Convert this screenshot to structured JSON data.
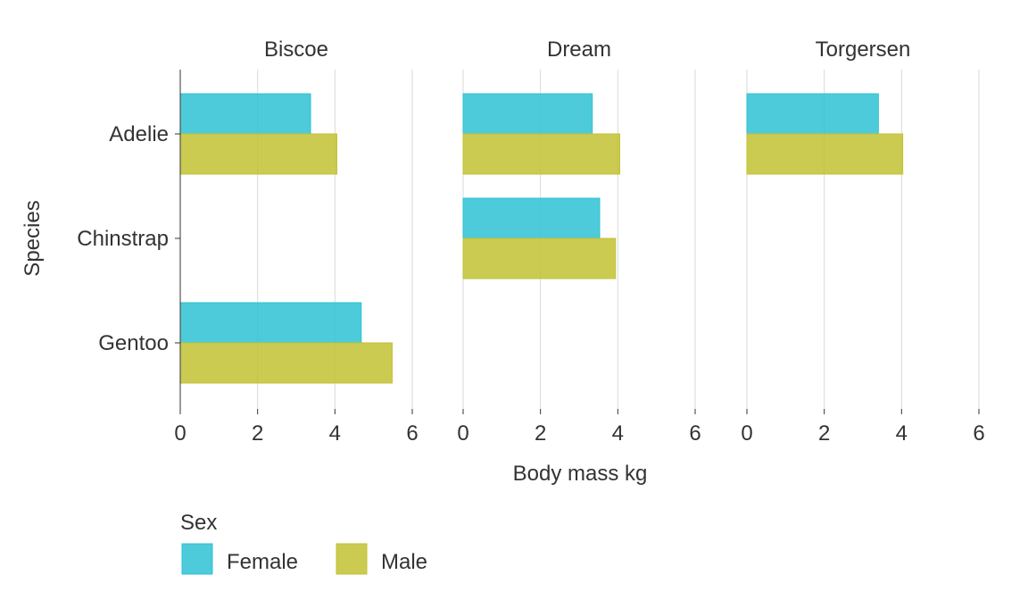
{
  "chart_data": {
    "type": "bar",
    "orientation": "horizontal",
    "facets": [
      "Biscoe",
      "Dream",
      "Torgersen"
    ],
    "categories": [
      "Adelie",
      "Chinstrap",
      "Gentoo"
    ],
    "xlabel": "Body mass kg",
    "ylabel": "Species",
    "xlim": [
      0,
      6
    ],
    "xticks": [
      "0",
      "2",
      "4",
      "6"
    ],
    "grid": "vertical",
    "legend": {
      "title": "Sex",
      "position": "bottom-left",
      "entries": [
        {
          "name": "Female",
          "color": "#2ec2d3"
        },
        {
          "name": "Male",
          "color": "#c2c234"
        }
      ]
    },
    "series": [
      {
        "name": "Female",
        "color": "#2ec2d3",
        "values": {
          "Biscoe": [
            3.37,
            null,
            4.68
          ],
          "Dream": [
            3.34,
            3.53,
            null
          ],
          "Torgersen": [
            3.4,
            null,
            null
          ]
        }
      },
      {
        "name": "Male",
        "color": "#c2c234",
        "values": {
          "Biscoe": [
            4.05,
            null,
            5.48
          ],
          "Dream": [
            4.05,
            3.94,
            null
          ],
          "Torgersen": [
            4.03,
            null,
            null
          ]
        }
      }
    ]
  }
}
